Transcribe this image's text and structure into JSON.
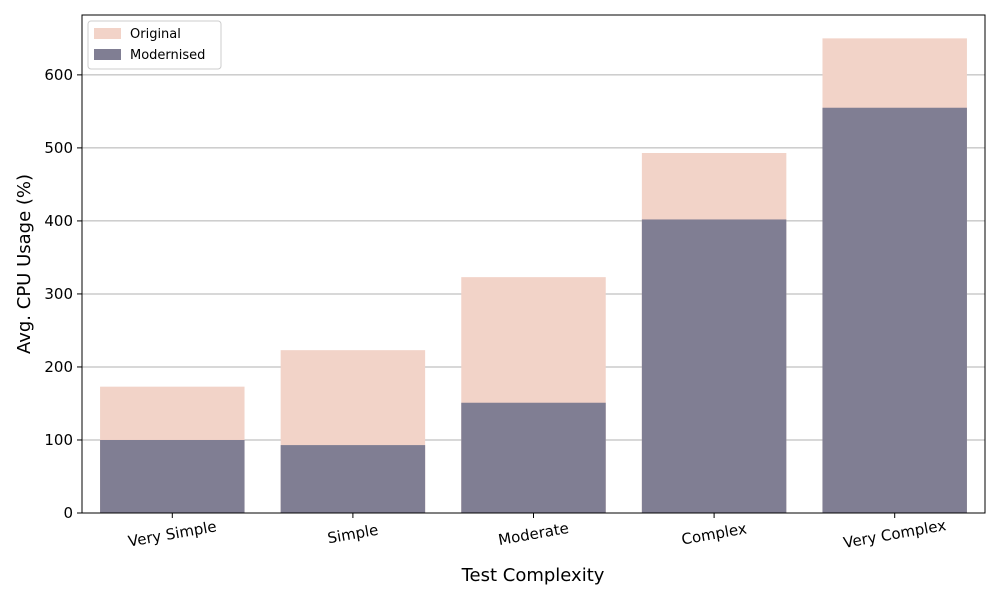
{
  "chart_data": {
    "type": "bar",
    "categories": [
      "Very Simple",
      "Simple",
      "Moderate",
      "Complex",
      "Very Complex"
    ],
    "series": [
      {
        "name": "Original",
        "values": [
          173,
          223,
          323,
          493,
          650
        ],
        "color": "#f2d3c8"
      },
      {
        "name": "Modernised",
        "values": [
          100,
          93,
          151,
          402,
          555
        ],
        "color": "#807e93"
      }
    ],
    "overlay": true,
    "xlabel": "Test Complexity",
    "ylabel": "Avg. CPU Usage (%)",
    "ylim": [
      0,
      682
    ],
    "yticks": [
      0,
      100,
      200,
      300,
      400,
      500,
      600
    ],
    "grid": "y",
    "grid_color": "#b0b0b0",
    "legend_position": "top-left",
    "xtick_rotation_deg": 10
  }
}
